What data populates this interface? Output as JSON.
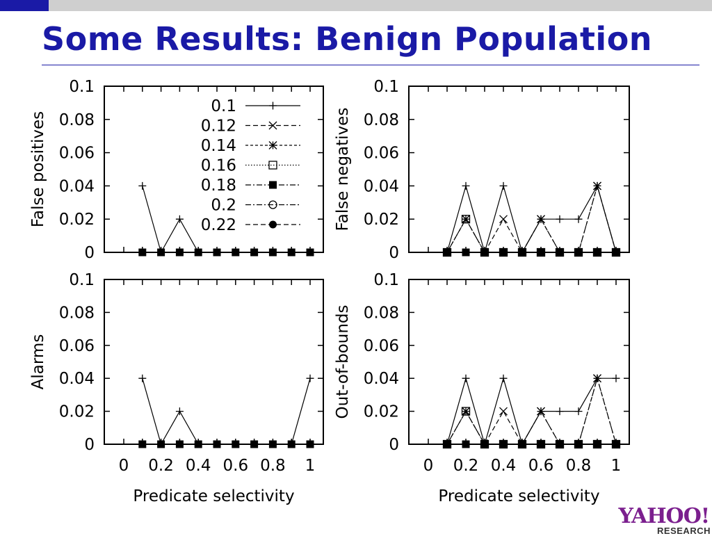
{
  "slide": {
    "title": "Some Results: Benign Population",
    "logo_brand": "YAHOO!",
    "logo_sub": "RESEARCH"
  },
  "colors": {
    "title": "#1a1aa6",
    "accent": "#1a1aa6",
    "bar": "#cfcfcf",
    "logo": "#7b1f8e"
  },
  "legend": {
    "placement": "inside top-right of top-left panel",
    "entries": [
      {
        "label": "0.1",
        "dash": "none",
        "marker": "plus"
      },
      {
        "label": "0.12",
        "dash": "dashed",
        "marker": "cross"
      },
      {
        "label": "0.14",
        "dash": "short-dashed",
        "marker": "star"
      },
      {
        "label": "0.16",
        "dash": "dotted",
        "marker": "open-square"
      },
      {
        "label": "0.18",
        "dash": "dash-dot",
        "marker": "filled-square"
      },
      {
        "label": "0.2",
        "dash": "dash-dot",
        "marker": "open-circle"
      },
      {
        "label": "0.22",
        "dash": "dashed",
        "marker": "filled-circle"
      }
    ]
  },
  "chart_data": [
    {
      "type": "line",
      "ylabel": "False positives",
      "xlabel": "",
      "ylim": [
        0,
        0.1
      ],
      "xlim": [
        0,
        1
      ],
      "yticks": [
        "0",
        "0.02",
        "0.04",
        "0.06",
        "0.08",
        "0.1"
      ],
      "xticks": [],
      "x": [
        0.1,
        0.2,
        0.3,
        0.4,
        0.5,
        0.6,
        0.7,
        0.8,
        0.9,
        1.0
      ],
      "series": [
        {
          "legend_index": 0,
          "values": [
            0.04,
            0,
            0.02,
            0,
            0,
            0,
            0,
            0,
            0,
            0
          ]
        },
        {
          "legend_index": 4,
          "values": [
            0,
            0,
            0,
            0,
            0,
            0,
            0,
            0,
            0,
            0
          ]
        }
      ],
      "has_legend": true
    },
    {
      "type": "line",
      "ylabel": "False negatives",
      "xlabel": "",
      "ylim": [
        0,
        0.1
      ],
      "xlim": [
        0,
        1
      ],
      "yticks": [
        "0",
        "0.02",
        "0.04",
        "0.06",
        "0.08",
        "0.1"
      ],
      "xticks": [],
      "x": [
        0.1,
        0.2,
        0.3,
        0.4,
        0.5,
        0.6,
        0.7,
        0.8,
        0.9,
        1.0
      ],
      "series": [
        {
          "legend_index": 0,
          "values": [
            0,
            0.04,
            0,
            0.04,
            0,
            0.02,
            0.02,
            0.02,
            0.04,
            0
          ]
        },
        {
          "legend_index": 1,
          "values": [
            0,
            0.02,
            0,
            0.02,
            0,
            0.02,
            0,
            0,
            0.04,
            0
          ]
        },
        {
          "legend_index": 2,
          "values": [
            0,
            0.02,
            0,
            0,
            0,
            0.02,
            0,
            0,
            0.04,
            0
          ]
        },
        {
          "legend_index": 3,
          "values": [
            0,
            0.02,
            0,
            0,
            0,
            0,
            0,
            0,
            0,
            0
          ]
        },
        {
          "legend_index": 4,
          "values": [
            0,
            0,
            0,
            0,
            0,
            0,
            0,
            0,
            0,
            0
          ]
        }
      ],
      "has_legend": false
    },
    {
      "type": "line",
      "ylabel": "Alarms",
      "xlabel": "Predicate selectivity",
      "ylim": [
        0,
        0.1
      ],
      "xlim": [
        0,
        1
      ],
      "yticks": [
        "0",
        "0.02",
        "0.04",
        "0.06",
        "0.08",
        "0.1"
      ],
      "xticks": [
        "0",
        "0.2",
        "0.4",
        "0.6",
        "0.8",
        "1"
      ],
      "x": [
        0.1,
        0.2,
        0.3,
        0.4,
        0.5,
        0.6,
        0.7,
        0.8,
        0.9,
        1.0
      ],
      "series": [
        {
          "legend_index": 0,
          "values": [
            0.04,
            0,
            0.02,
            0,
            0,
            0,
            0,
            0,
            0,
            0.04
          ]
        },
        {
          "legend_index": 4,
          "values": [
            0,
            0,
            0,
            0,
            0,
            0,
            0,
            0,
            0,
            0
          ]
        }
      ],
      "has_legend": false
    },
    {
      "type": "line",
      "ylabel": "Out-of-bounds",
      "xlabel": "Predicate selectivity",
      "ylim": [
        0,
        0.1
      ],
      "xlim": [
        0,
        1
      ],
      "yticks": [
        "0",
        "0.02",
        "0.04",
        "0.06",
        "0.08",
        "0.1"
      ],
      "xticks": [
        "0",
        "0.2",
        "0.4",
        "0.6",
        "0.8",
        "1"
      ],
      "x": [
        0.1,
        0.2,
        0.3,
        0.4,
        0.5,
        0.6,
        0.7,
        0.8,
        0.9,
        1.0
      ],
      "series": [
        {
          "legend_index": 0,
          "values": [
            0,
            0.04,
            0,
            0.04,
            0,
            0.02,
            0.02,
            0.02,
            0.04,
            0.04
          ]
        },
        {
          "legend_index": 1,
          "values": [
            0,
            0.02,
            0,
            0.02,
            0,
            0.02,
            0,
            0,
            0.04,
            0
          ]
        },
        {
          "legend_index": 2,
          "values": [
            0,
            0.02,
            0,
            0,
            0,
            0.02,
            0,
            0,
            0.04,
            0
          ]
        },
        {
          "legend_index": 3,
          "values": [
            0,
            0.02,
            0,
            0,
            0,
            0,
            0,
            0,
            0,
            0
          ]
        },
        {
          "legend_index": 4,
          "values": [
            0,
            0,
            0,
            0,
            0,
            0,
            0,
            0,
            0,
            0
          ]
        }
      ],
      "has_legend": false
    }
  ]
}
